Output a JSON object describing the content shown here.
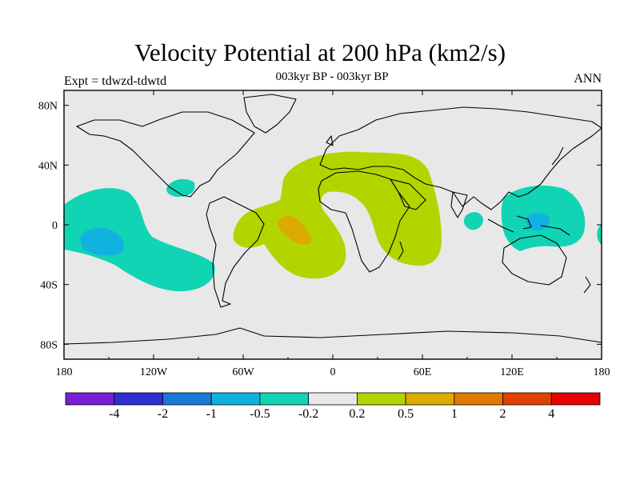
{
  "title": "Velocity Potential at 200 hPa (km2/s)",
  "subtitle": "003kyr BP - 003kyr BP",
  "left_label": "Expt = tdwzd-tdwtd",
  "right_label": "ANN",
  "map": {
    "lon_ticks": [
      "180",
      "120W",
      "60W",
      "0",
      "60E",
      "120E",
      "180"
    ],
    "lat_ticks": [
      "80N",
      "40N",
      "0",
      "40S",
      "80S"
    ],
    "background_color": "#e8e8e8"
  },
  "colorbar": {
    "colors": [
      "#7a1fd6",
      "#2e2ed2",
      "#1a78d8",
      "#12b2e0",
      "#10d4b4",
      "#e8e8e8",
      "#b4d400",
      "#dcaa00",
      "#e07a00",
      "#e04000",
      "#e80000"
    ],
    "labels": [
      "-4",
      "-2",
      "-1",
      "-0.5",
      "-0.2",
      "0.2",
      "0.5",
      "1",
      "2",
      "4"
    ]
  }
}
